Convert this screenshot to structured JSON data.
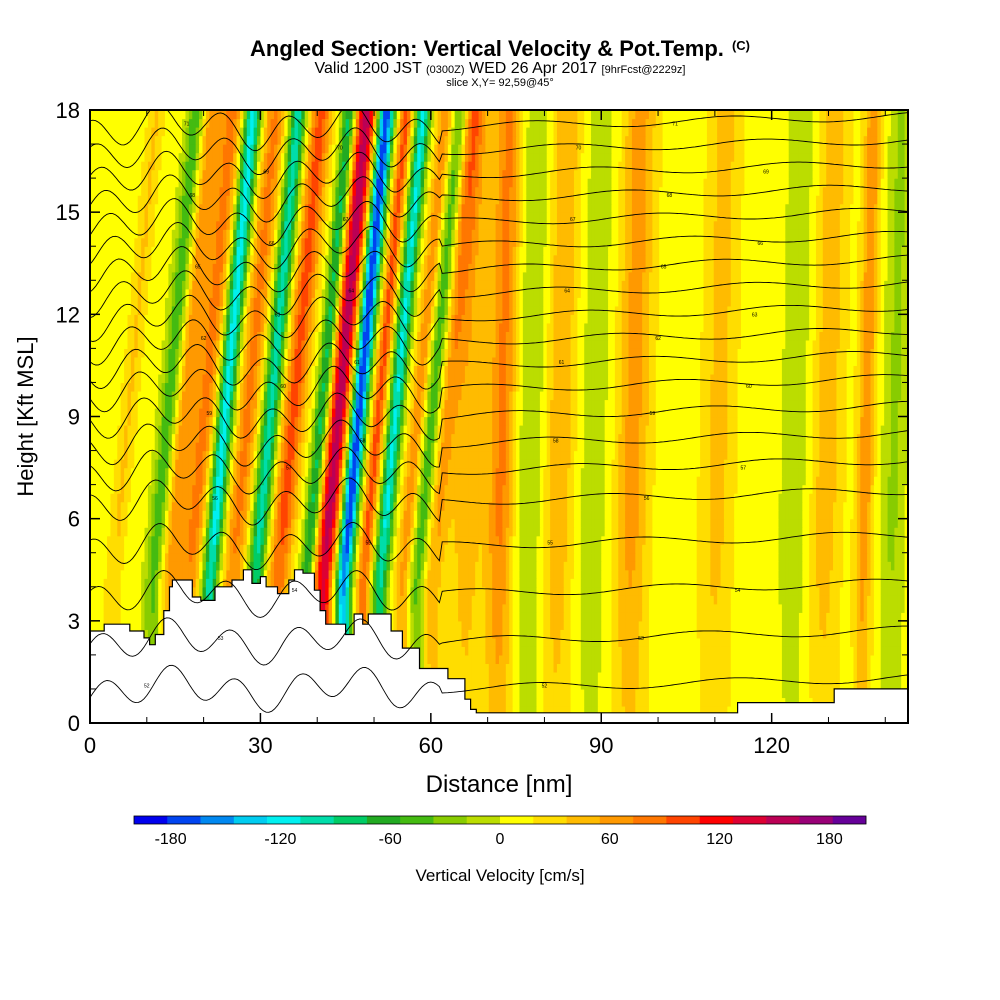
{
  "header": {
    "title": "Angled Section: Vertical Velocity & Pot.Temp.",
    "title_tag": "(C)",
    "valid_prefix": "Valid 1200 JST",
    "valid_zulu": "(0300Z)",
    "valid_date": "WED 26 Apr 2017",
    "forecast": "[9hrFcst@2229z]",
    "slice": "slice X,Y= 92,59@45°"
  },
  "chart_data": {
    "type": "heatmap",
    "xlabel": "Distance [nm]",
    "ylabel": "Height [Kft MSL]",
    "xlim": [
      0,
      144
    ],
    "ylim": [
      0,
      18
    ],
    "x_ticks": [
      0,
      30,
      60,
      90,
      120
    ],
    "y_ticks": [
      0,
      3,
      6,
      9,
      12,
      15,
      18
    ],
    "colorbar": {
      "label": "Vertical Velocity [cm/s]",
      "ticks": [
        -180,
        -120,
        -60,
        0,
        60,
        120,
        180
      ],
      "bounds": [
        -200,
        200
      ],
      "colors": [
        "#0000ee",
        "#0044f0",
        "#0088f0",
        "#00ccf0",
        "#00f0f0",
        "#00ddaa",
        "#00cc66",
        "#22aa22",
        "#44bb11",
        "#88cc00",
        "#bbdd00",
        "#ffff00",
        "#ffdd00",
        "#ffbb00",
        "#ff9900",
        "#ff7700",
        "#ff4400",
        "#ff0000",
        "#dd0033",
        "#bb0055",
        "#990077",
        "#660099"
      ]
    },
    "updraft_bands": [
      {
        "x": 4,
        "w": 1.5,
        "peak": 30
      },
      {
        "x": 14,
        "w": 1.8,
        "peak": 60
      },
      {
        "x": 17.5,
        "w": 2,
        "peak": 70
      },
      {
        "x": 25,
        "w": 2,
        "peak": 70
      },
      {
        "x": 33,
        "w": 2,
        "peak": 90
      },
      {
        "x": 41,
        "w": 1.8,
        "peak": 150
      },
      {
        "x": 48,
        "w": 1.2,
        "peak": 90
      },
      {
        "x": 55,
        "w": 1.5,
        "peak": 60
      },
      {
        "x": 60,
        "w": 2,
        "peak": 50
      },
      {
        "x": 66,
        "w": 3,
        "peak": 40
      },
      {
        "x": 72,
        "w": 2.5,
        "peak": 70
      },
      {
        "x": 82,
        "w": 3,
        "peak": 45
      },
      {
        "x": 95,
        "w": 3,
        "peak": 55
      },
      {
        "x": 110,
        "w": 3,
        "peak": 35
      },
      {
        "x": 129,
        "w": 3,
        "peak": 40
      },
      {
        "x": 136,
        "w": 1.5,
        "peak": 60
      }
    ],
    "downdraft_bands": [
      {
        "x": 11,
        "w": 1.5,
        "peak": -60
      },
      {
        "x": 21,
        "w": 1.5,
        "peak": -130
      },
      {
        "x": 29,
        "w": 1.5,
        "peak": -110
      },
      {
        "x": 38,
        "w": 1.2,
        "peak": -90
      },
      {
        "x": 44.5,
        "w": 1.4,
        "peak": -190
      },
      {
        "x": 51,
        "w": 1.3,
        "peak": -120
      },
      {
        "x": 57.5,
        "w": 1.5,
        "peak": -70
      },
      {
        "x": 77,
        "w": 3,
        "peak": -30
      },
      {
        "x": 88,
        "w": 3,
        "peak": -20
      },
      {
        "x": 124,
        "w": 3,
        "peak": -20
      },
      {
        "x": 141,
        "w": 2,
        "peak": -30
      }
    ],
    "terrain": [
      [
        0,
        2.7
      ],
      [
        2.5,
        2.9
      ],
      [
        7,
        2.7
      ],
      [
        9.5,
        2.5
      ],
      [
        10.5,
        2.3
      ],
      [
        11.5,
        2.6
      ],
      [
        13,
        3.3
      ],
      [
        14,
        4.0
      ],
      [
        14.5,
        4.2
      ],
      [
        17,
        4.2
      ],
      [
        18,
        3.7
      ],
      [
        19.5,
        3.6
      ],
      [
        20.5,
        3.6
      ],
      [
        22,
        4.0
      ],
      [
        25,
        4.2
      ],
      [
        27,
        4.5
      ],
      [
        28.5,
        4.1
      ],
      [
        30,
        4.3
      ],
      [
        31,
        4.0
      ],
      [
        33,
        3.8
      ],
      [
        35,
        4.2
      ],
      [
        36,
        4.5
      ],
      [
        37.5,
        4.4
      ],
      [
        39.5,
        3.9
      ],
      [
        40.5,
        3.3
      ],
      [
        41.5,
        2.9
      ],
      [
        44,
        2.9
      ],
      [
        45,
        2.6
      ],
      [
        46.5,
        3.2
      ],
      [
        48,
        2.9
      ],
      [
        49,
        3.2
      ],
      [
        51.5,
        3.2
      ],
      [
        53,
        2.7
      ],
      [
        55,
        2.2
      ],
      [
        58,
        1.6
      ],
      [
        62,
        1.6
      ],
      [
        63,
        1.3
      ],
      [
        66,
        0.7
      ],
      [
        67,
        0.4
      ],
      [
        68,
        0.3
      ],
      [
        112,
        0.3
      ],
      [
        114,
        0.6
      ],
      [
        130,
        0.6
      ],
      [
        131,
        1.0
      ],
      [
        142,
        1.0
      ],
      [
        144,
        1.3
      ]
    ],
    "theta_contours": [
      {
        "base": 1.0,
        "label": "52"
      },
      {
        "base": 2.4,
        "label": "53"
      },
      {
        "base": 3.8,
        "label": "54"
      },
      {
        "base": 5.2,
        "label": "55"
      },
      {
        "base": 6.5,
        "label": "56"
      },
      {
        "base": 7.4,
        "label": "57"
      },
      {
        "base": 8.2,
        "label": "58"
      },
      {
        "base": 9.0,
        "label": "59"
      },
      {
        "base": 9.8,
        "label": "60"
      },
      {
        "base": 10.5,
        "label": "61"
      },
      {
        "base": 11.2,
        "label": "62"
      },
      {
        "base": 11.9,
        "label": "63"
      },
      {
        "base": 12.6,
        "label": "64"
      },
      {
        "base": 13.3,
        "label": "65"
      },
      {
        "base": 14.0,
        "label": "66"
      },
      {
        "base": 14.7,
        "label": "67"
      },
      {
        "base": 15.4,
        "label": "68"
      },
      {
        "base": 16.1,
        "label": "69"
      },
      {
        "base": 16.8,
        "label": "70"
      },
      {
        "base": 17.5,
        "label": "71"
      }
    ],
    "grid": false,
    "legend": "bottom"
  }
}
